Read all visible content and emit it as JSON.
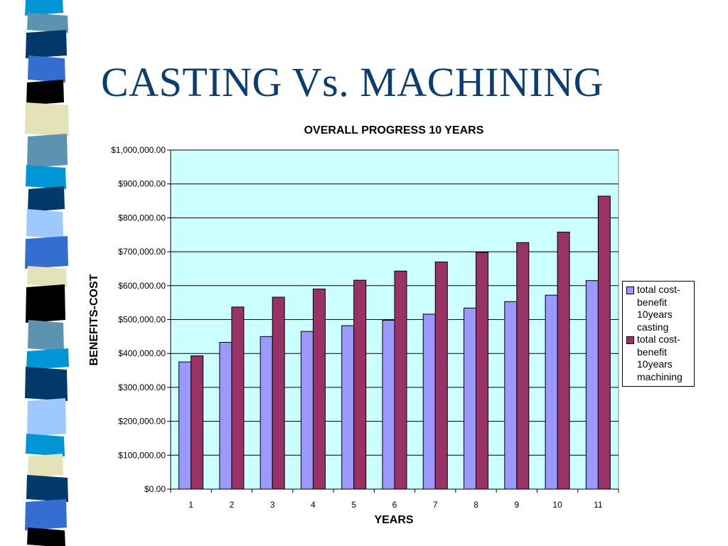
{
  "slide": {
    "title": "CASTING Vs. MACHINING"
  },
  "decoration": {
    "colors": [
      "#0096d6",
      "#5b93b0",
      "#00396a",
      "#356ed0",
      "#000000",
      "#e4e2b8",
      "#9ec9ff",
      "#ffffff"
    ],
    "pattern": "stacked-bands"
  },
  "chart_data": {
    "type": "bar",
    "title": "OVERALL PROGRESS 10 YEARS",
    "xlabel": "YEARS",
    "ylabel": "BENEFITS-COST",
    "categories": [
      "1",
      "2",
      "3",
      "4",
      "5",
      "6",
      "7",
      "8",
      "9",
      "10",
      "11"
    ],
    "ylim": [
      0,
      1000000
    ],
    "yticks": [
      0,
      100000,
      200000,
      300000,
      400000,
      500000,
      600000,
      700000,
      800000,
      900000,
      1000000
    ],
    "ytick_labels": [
      "$0.00",
      "$100,000.00",
      "$200,000.00",
      "$300,000.00",
      "$400,000.00",
      "$500,000.00",
      "$600,000.00",
      "$700,000.00",
      "$800,000.00",
      "$900,000.00",
      "$1,000,000.00"
    ],
    "grid": true,
    "plot_background": "#ccffff",
    "legend_position": "right",
    "series": [
      {
        "name": "total cost-benefit 10years casting",
        "color": "#9999ff",
        "values": [
          375000,
          433000,
          450000,
          465000,
          482000,
          498000,
          516000,
          534000,
          553000,
          572000,
          615000
        ]
      },
      {
        "name": "total cost-benefit 10years machining",
        "color": "#993366",
        "values": [
          393000,
          537000,
          566000,
          590000,
          616000,
          643000,
          670000,
          698000,
          727000,
          758000,
          864000
        ]
      }
    ]
  }
}
